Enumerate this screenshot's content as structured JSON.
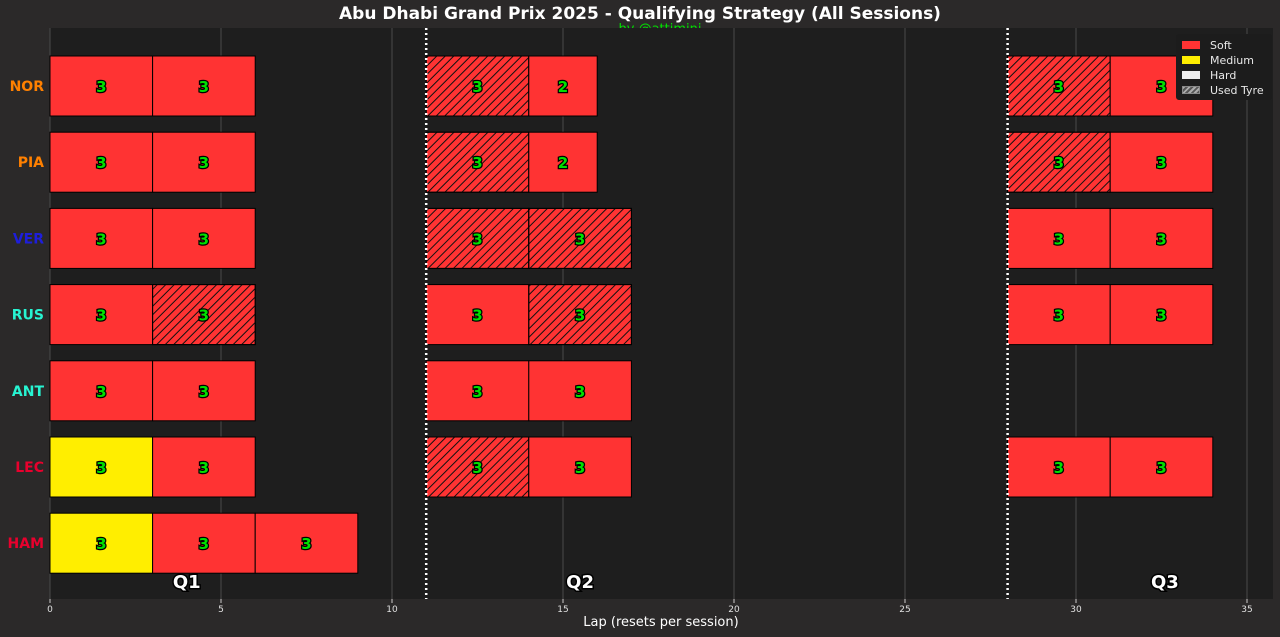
{
  "chart_data": {
    "type": "bar",
    "orientation": "horizontal-stacked",
    "title": "Abu Dhabi Grand Prix 2025 - Qualifying Strategy (All Sessions)",
    "subtitle": "by @attimini",
    "xlabel": "Lap (resets per session)",
    "xlim": [
      0,
      36
    ],
    "xticks": [
      0,
      5,
      10,
      15,
      20,
      25,
      30,
      35
    ],
    "session_boundaries": [
      11,
      28
    ],
    "sessions": [
      {
        "label": "Q1",
        "center": 4
      },
      {
        "label": "Q2",
        "center": 15.5
      },
      {
        "label": "Q3",
        "center": 32.6
      }
    ],
    "compound_colors": {
      "Soft": "#ff3333",
      "Medium": "#ffee00",
      "Hard": "#eeeeee"
    },
    "label_color": "#00e000",
    "drivers": [
      {
        "name": "NOR",
        "color": "#ff8000",
        "stints": [
          {
            "start": 0,
            "laps": 3,
            "compound": "Soft",
            "used": false
          },
          {
            "start": 3,
            "laps": 3,
            "compound": "Soft",
            "used": false
          },
          {
            "start": 11,
            "laps": 3,
            "compound": "Soft",
            "used": true
          },
          {
            "start": 14,
            "laps": 2,
            "compound": "Soft",
            "used": false
          },
          {
            "start": 28,
            "laps": 3,
            "compound": "Soft",
            "used": true
          },
          {
            "start": 31,
            "laps": 3,
            "compound": "Soft",
            "used": false
          }
        ]
      },
      {
        "name": "PIA",
        "color": "#ff8000",
        "stints": [
          {
            "start": 0,
            "laps": 3,
            "compound": "Soft",
            "used": false
          },
          {
            "start": 3,
            "laps": 3,
            "compound": "Soft",
            "used": false
          },
          {
            "start": 11,
            "laps": 3,
            "compound": "Soft",
            "used": true
          },
          {
            "start": 14,
            "laps": 2,
            "compound": "Soft",
            "used": false
          },
          {
            "start": 28,
            "laps": 3,
            "compound": "Soft",
            "used": true
          },
          {
            "start": 31,
            "laps": 3,
            "compound": "Soft",
            "used": false
          }
        ]
      },
      {
        "name": "VER",
        "color": "#1e1edc",
        "stints": [
          {
            "start": 0,
            "laps": 3,
            "compound": "Soft",
            "used": false
          },
          {
            "start": 3,
            "laps": 3,
            "compound": "Soft",
            "used": false
          },
          {
            "start": 11,
            "laps": 3,
            "compound": "Soft",
            "used": true
          },
          {
            "start": 14,
            "laps": 3,
            "compound": "Soft",
            "used": true
          },
          {
            "start": 28,
            "laps": 3,
            "compound": "Soft",
            "used": false
          },
          {
            "start": 31,
            "laps": 3,
            "compound": "Soft",
            "used": false
          }
        ]
      },
      {
        "name": "RUS",
        "color": "#27f4d2",
        "stints": [
          {
            "start": 0,
            "laps": 3,
            "compound": "Soft",
            "used": false
          },
          {
            "start": 3,
            "laps": 3,
            "compound": "Soft",
            "used": true
          },
          {
            "start": 11,
            "laps": 3,
            "compound": "Soft",
            "used": false
          },
          {
            "start": 14,
            "laps": 3,
            "compound": "Soft",
            "used": true
          },
          {
            "start": 28,
            "laps": 3,
            "compound": "Soft",
            "used": false
          },
          {
            "start": 31,
            "laps": 3,
            "compound": "Soft",
            "used": false
          }
        ]
      },
      {
        "name": "ANT",
        "color": "#27f4d2",
        "stints": [
          {
            "start": 0,
            "laps": 3,
            "compound": "Soft",
            "used": false
          },
          {
            "start": 3,
            "laps": 3,
            "compound": "Soft",
            "used": false
          },
          {
            "start": 11,
            "laps": 3,
            "compound": "Soft",
            "used": false
          },
          {
            "start": 14,
            "laps": 3,
            "compound": "Soft",
            "used": false
          }
        ]
      },
      {
        "name": "LEC",
        "color": "#e8002d",
        "stints": [
          {
            "start": 0,
            "laps": 3,
            "compound": "Medium",
            "used": false
          },
          {
            "start": 3,
            "laps": 3,
            "compound": "Soft",
            "used": false
          },
          {
            "start": 11,
            "laps": 3,
            "compound": "Soft",
            "used": true
          },
          {
            "start": 14,
            "laps": 3,
            "compound": "Soft",
            "used": false
          },
          {
            "start": 28,
            "laps": 3,
            "compound": "Soft",
            "used": false
          },
          {
            "start": 31,
            "laps": 3,
            "compound": "Soft",
            "used": false
          }
        ]
      },
      {
        "name": "HAM",
        "color": "#e8002d",
        "stints": [
          {
            "start": 0,
            "laps": 3,
            "compound": "Medium",
            "used": false
          },
          {
            "start": 3,
            "laps": 3,
            "compound": "Soft",
            "used": false
          },
          {
            "start": 6,
            "laps": 3,
            "compound": "Soft",
            "used": false
          }
        ]
      }
    ],
    "legend": {
      "placement": "top-right",
      "items": [
        "Soft",
        "Medium",
        "Hard",
        "Used Tyre"
      ]
    }
  }
}
